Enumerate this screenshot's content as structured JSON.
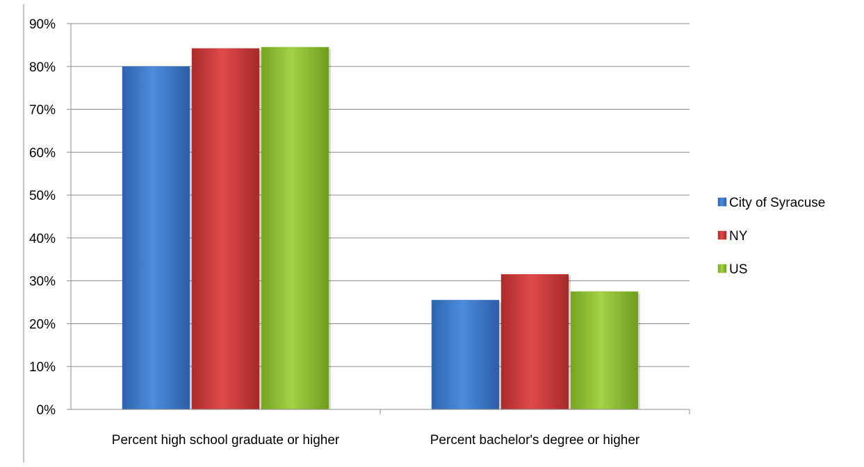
{
  "chart_data": {
    "type": "bar",
    "title": "",
    "xlabel": "",
    "ylabel": "",
    "categories": [
      "Percent high school graduate or higher",
      "Percent bachelor's degree or higher"
    ],
    "series": [
      {
        "name": "City of Syracuse",
        "values": [
          0.8,
          0.255
        ],
        "color": "#3b78c9"
      },
      {
        "name": "NY",
        "values": [
          0.842,
          0.315
        ],
        "color": "#c9393a"
      },
      {
        "name": "US",
        "values": [
          0.845,
          0.275
        ],
        "color": "#8cbf2f"
      }
    ],
    "ylim": [
      0,
      0.9
    ],
    "yticks": [
      "0%",
      "10%",
      "20%",
      "30%",
      "40%",
      "50%",
      "60%",
      "70%",
      "80%",
      "90%"
    ],
    "grid": true,
    "legend": "right"
  }
}
